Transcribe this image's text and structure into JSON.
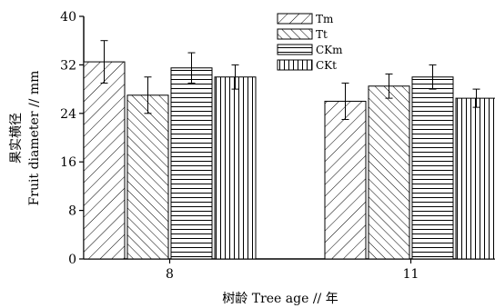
{
  "chart_data": {
    "type": "bar",
    "categories": [
      "8",
      "11"
    ],
    "series": [
      {
        "name": "Tm",
        "pattern": "diag-up",
        "values": [
          32.5,
          26.0
        ],
        "errors": [
          3.5,
          3.0
        ]
      },
      {
        "name": "Tt",
        "pattern": "diag-down",
        "values": [
          27.0,
          28.5
        ],
        "errors": [
          3.0,
          2.0
        ]
      },
      {
        "name": "CKm",
        "pattern": "horizontal",
        "values": [
          31.5,
          30.0
        ],
        "errors": [
          2.5,
          2.0
        ]
      },
      {
        "name": "CKt",
        "pattern": "vertical",
        "values": [
          30.0,
          26.5
        ],
        "errors": [
          2.0,
          1.5
        ]
      }
    ],
    "xlabel": "树龄 Tree age // 年",
    "ylabel_cn": "果实横径",
    "ylabel_en": "Fruit diameter // mm",
    "ylim": [
      0,
      40
    ],
    "yticks": [
      "0",
      "8",
      "16",
      "24",
      "32",
      "40"
    ],
    "legend_position": "top-right",
    "grid": false,
    "colors": {
      "stroke": "#000000",
      "background": "#ffffff"
    }
  }
}
